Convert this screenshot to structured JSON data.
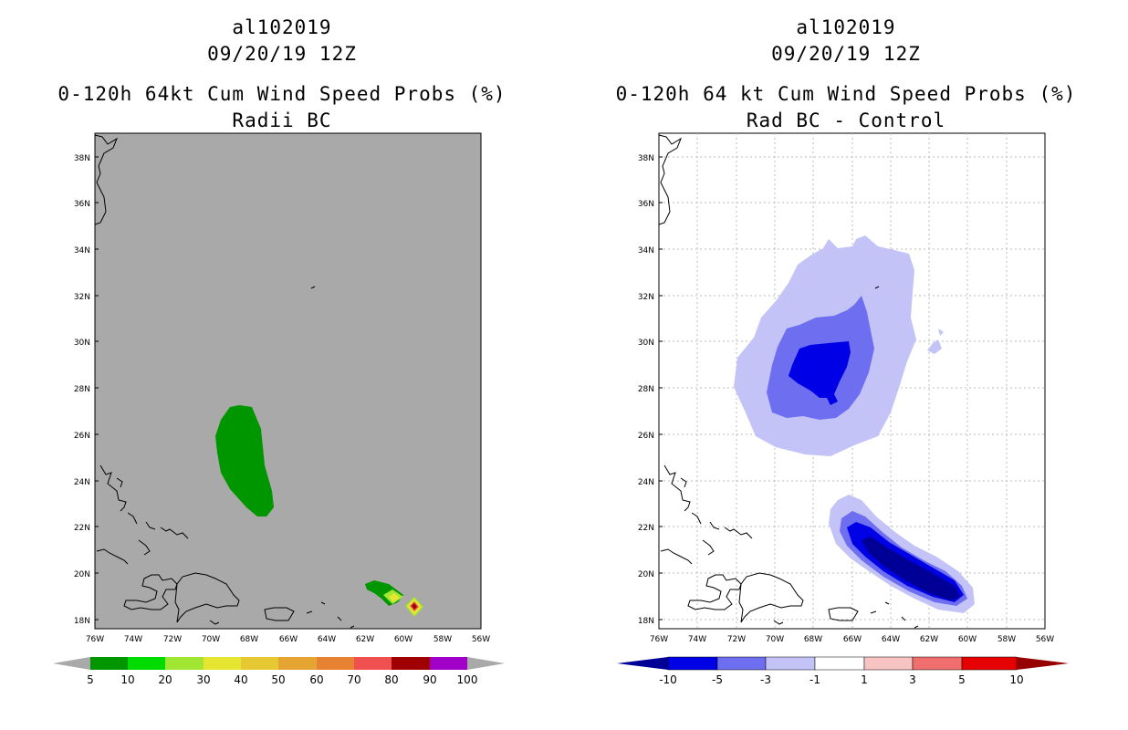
{
  "panels": [
    {
      "storm_id": "al102019",
      "datetime": "09/20/19 12Z",
      "product_title": "0-120h 64kt Cum Wind Speed Probs (%)",
      "subtitle": "Radii BC",
      "background": "#a9a9a9",
      "lat_ticks": [
        "38N",
        "36N",
        "34N",
        "32N",
        "30N",
        "28N",
        "26N",
        "24N",
        "22N",
        "20N",
        "18N"
      ],
      "lon_ticks": [
        "76W",
        "74W",
        "72W",
        "70W",
        "68W",
        "66W",
        "64W",
        "62W",
        "60W",
        "58W",
        "56W"
      ],
      "colorbar": {
        "labels": [
          "5",
          "10",
          "20",
          "30",
          "40",
          "50",
          "60",
          "70",
          "80",
          "90",
          "100"
        ],
        "colors": [
          "#009600",
          "#00dc00",
          "#a0e632",
          "#e6e632",
          "#e6c832",
          "#e6a532",
          "#e68232",
          "#f05050",
          "#a00000",
          "#a000c8"
        ],
        "end_color": "#a9a9a9"
      }
    },
    {
      "storm_id": "al102019",
      "datetime": "09/20/19 12Z",
      "product_title": "0-120h 64 kt Cum Wind Speed Probs (%)",
      "subtitle": "Rad BC - Control",
      "background": "#ffffff",
      "lat_ticks": [
        "38N",
        "36N",
        "34N",
        "32N",
        "30N",
        "28N",
        "26N",
        "24N",
        "22N",
        "20N",
        "18N"
      ],
      "lon_ticks": [
        "76W",
        "74W",
        "72W",
        "70W",
        "68W",
        "66W",
        "64W",
        "62W",
        "60W",
        "58W",
        "56W"
      ],
      "colorbar": {
        "labels": [
          "-10",
          "-5",
          "-3",
          "-1",
          "1",
          "3",
          "5",
          "10"
        ],
        "colors": [
          "#0000e6",
          "#6e6ef0",
          "#c3c3f8",
          "#ffffff",
          "#f8c3c3",
          "#f06e6e",
          "#e60000"
        ],
        "low_end_color": "#000096",
        "high_end_color": "#960000"
      }
    }
  ]
}
